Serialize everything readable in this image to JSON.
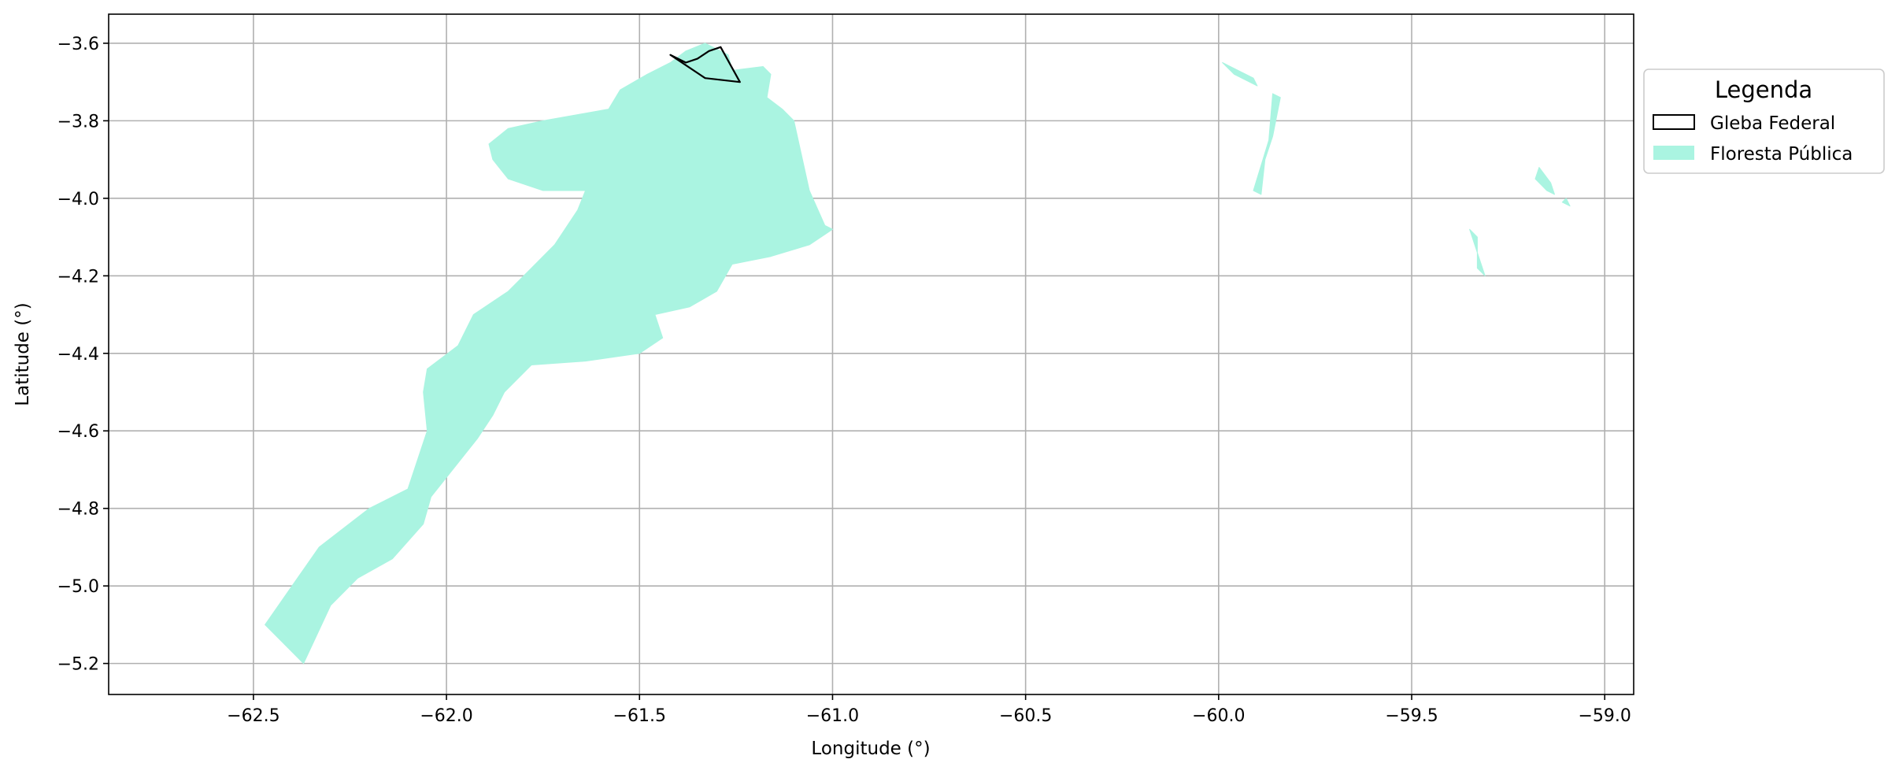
{
  "chart_data": {
    "type": "map",
    "xlabel": "Longitude (°)",
    "ylabel": "Latitude (°)",
    "xlim": [
      -62.875,
      -58.925
    ],
    "ylim": [
      -5.28,
      -3.525
    ],
    "x_ticks": [
      -62.5,
      -62.0,
      -61.5,
      -61.0,
      -60.5,
      -60.0,
      -59.5,
      -59.0
    ],
    "x_tick_labels": [
      "−62.5",
      "−62.0",
      "−61.5",
      "−61.0",
      "−60.5",
      "−60.0",
      "−59.5",
      "−59.0"
    ],
    "y_ticks": [
      -3.6,
      -3.8,
      -4.0,
      -4.2,
      -4.4,
      -4.6,
      -4.8,
      -5.0,
      -5.2
    ],
    "y_tick_labels": [
      "−3.6",
      "−3.8",
      "−4.0",
      "−4.2",
      "−4.4",
      "−4.6",
      "−4.8",
      "−5.0",
      "−5.2"
    ],
    "grid": true,
    "legend": {
      "title": "Legenda",
      "placement": "outside-upper-right",
      "entries": [
        {
          "label": "Gleba Federal",
          "style": "outline",
          "color": "#000000"
        },
        {
          "label": "Floresta Pública",
          "style": "fill",
          "color": "#aaf4e1"
        }
      ]
    },
    "layers": [
      {
        "name": "Floresta Pública",
        "fill": "#aaf4e1",
        "polygons": [
          [
            [
              -61.38,
              -3.62
            ],
            [
              -61.33,
              -3.6
            ],
            [
              -61.27,
              -3.63
            ],
            [
              -61.26,
              -3.67
            ],
            [
              -61.18,
              -3.66
            ],
            [
              -61.16,
              -3.68
            ],
            [
              -61.17,
              -3.74
            ],
            [
              -61.13,
              -3.77
            ],
            [
              -61.1,
              -3.8
            ],
            [
              -61.08,
              -3.89
            ],
            [
              -61.06,
              -3.98
            ],
            [
              -61.02,
              -4.07
            ],
            [
              -61.0,
              -4.08
            ],
            [
              -61.06,
              -4.12
            ],
            [
              -61.16,
              -4.15
            ],
            [
              -61.26,
              -4.17
            ],
            [
              -61.3,
              -4.24
            ],
            [
              -61.37,
              -4.28
            ],
            [
              -61.46,
              -4.3
            ],
            [
              -61.44,
              -4.36
            ],
            [
              -61.5,
              -4.4
            ],
            [
              -61.64,
              -4.42
            ],
            [
              -61.78,
              -4.43
            ],
            [
              -61.85,
              -4.5
            ],
            [
              -61.88,
              -4.56
            ],
            [
              -61.92,
              -4.62
            ],
            [
              -62.0,
              -4.72
            ],
            [
              -62.04,
              -4.77
            ],
            [
              -62.06,
              -4.84
            ],
            [
              -62.14,
              -4.93
            ],
            [
              -62.23,
              -4.98
            ],
            [
              -62.3,
              -5.05
            ],
            [
              -62.37,
              -5.2
            ],
            [
              -62.47,
              -5.1
            ],
            [
              -62.4,
              -5.0
            ],
            [
              -62.33,
              -4.9
            ],
            [
              -62.2,
              -4.8
            ],
            [
              -62.1,
              -4.75
            ],
            [
              -62.05,
              -4.6
            ],
            [
              -62.06,
              -4.5
            ],
            [
              -62.05,
              -4.44
            ],
            [
              -61.97,
              -4.38
            ],
            [
              -61.93,
              -4.3
            ],
            [
              -61.84,
              -4.24
            ],
            [
              -61.78,
              -4.18
            ],
            [
              -61.72,
              -4.12
            ],
            [
              -61.66,
              -4.03
            ],
            [
              -61.64,
              -3.98
            ],
            [
              -61.75,
              -3.98
            ],
            [
              -61.84,
              -3.95
            ],
            [
              -61.88,
              -3.9
            ],
            [
              -61.89,
              -3.86
            ],
            [
              -61.84,
              -3.82
            ],
            [
              -61.75,
              -3.8
            ],
            [
              -61.58,
              -3.77
            ],
            [
              -61.55,
              -3.72
            ],
            [
              -61.48,
              -3.68
            ],
            [
              -61.42,
              -3.65
            ]
          ],
          [
            [
              -59.99,
              -3.65
            ],
            [
              -59.97,
              -3.66
            ],
            [
              -59.91,
              -3.69
            ],
            [
              -59.9,
              -3.71
            ],
            [
              -59.96,
              -3.68
            ]
          ],
          [
            [
              -59.86,
              -3.73
            ],
            [
              -59.84,
              -3.74
            ],
            [
              -59.86,
              -3.84
            ],
            [
              -59.88,
              -3.9
            ],
            [
              -59.89,
              -3.99
            ],
            [
              -59.91,
              -3.98
            ],
            [
              -59.87,
              -3.85
            ]
          ],
          [
            [
              -59.17,
              -3.92
            ],
            [
              -59.14,
              -3.96
            ],
            [
              -59.13,
              -3.99
            ],
            [
              -59.15,
              -3.98
            ],
            [
              -59.18,
              -3.95
            ]
          ],
          [
            [
              -59.35,
              -4.08
            ],
            [
              -59.33,
              -4.1
            ],
            [
              -59.33,
              -4.18
            ],
            [
              -59.31,
              -4.2
            ],
            [
              -59.33,
              -4.14
            ]
          ],
          [
            [
              -59.1,
              -4.0
            ],
            [
              -59.09,
              -4.02
            ],
            [
              -59.11,
              -4.01
            ]
          ]
        ]
      },
      {
        "name": "Gleba Federal",
        "stroke": "#000000",
        "polygons": [
          [
            [
              -61.42,
              -3.63
            ],
            [
              -61.38,
              -3.65
            ],
            [
              -61.35,
              -3.64
            ],
            [
              -61.32,
              -3.62
            ],
            [
              -61.29,
              -3.61
            ],
            [
              -61.24,
              -3.7
            ],
            [
              -61.33,
              -3.69
            ]
          ]
        ]
      }
    ]
  }
}
